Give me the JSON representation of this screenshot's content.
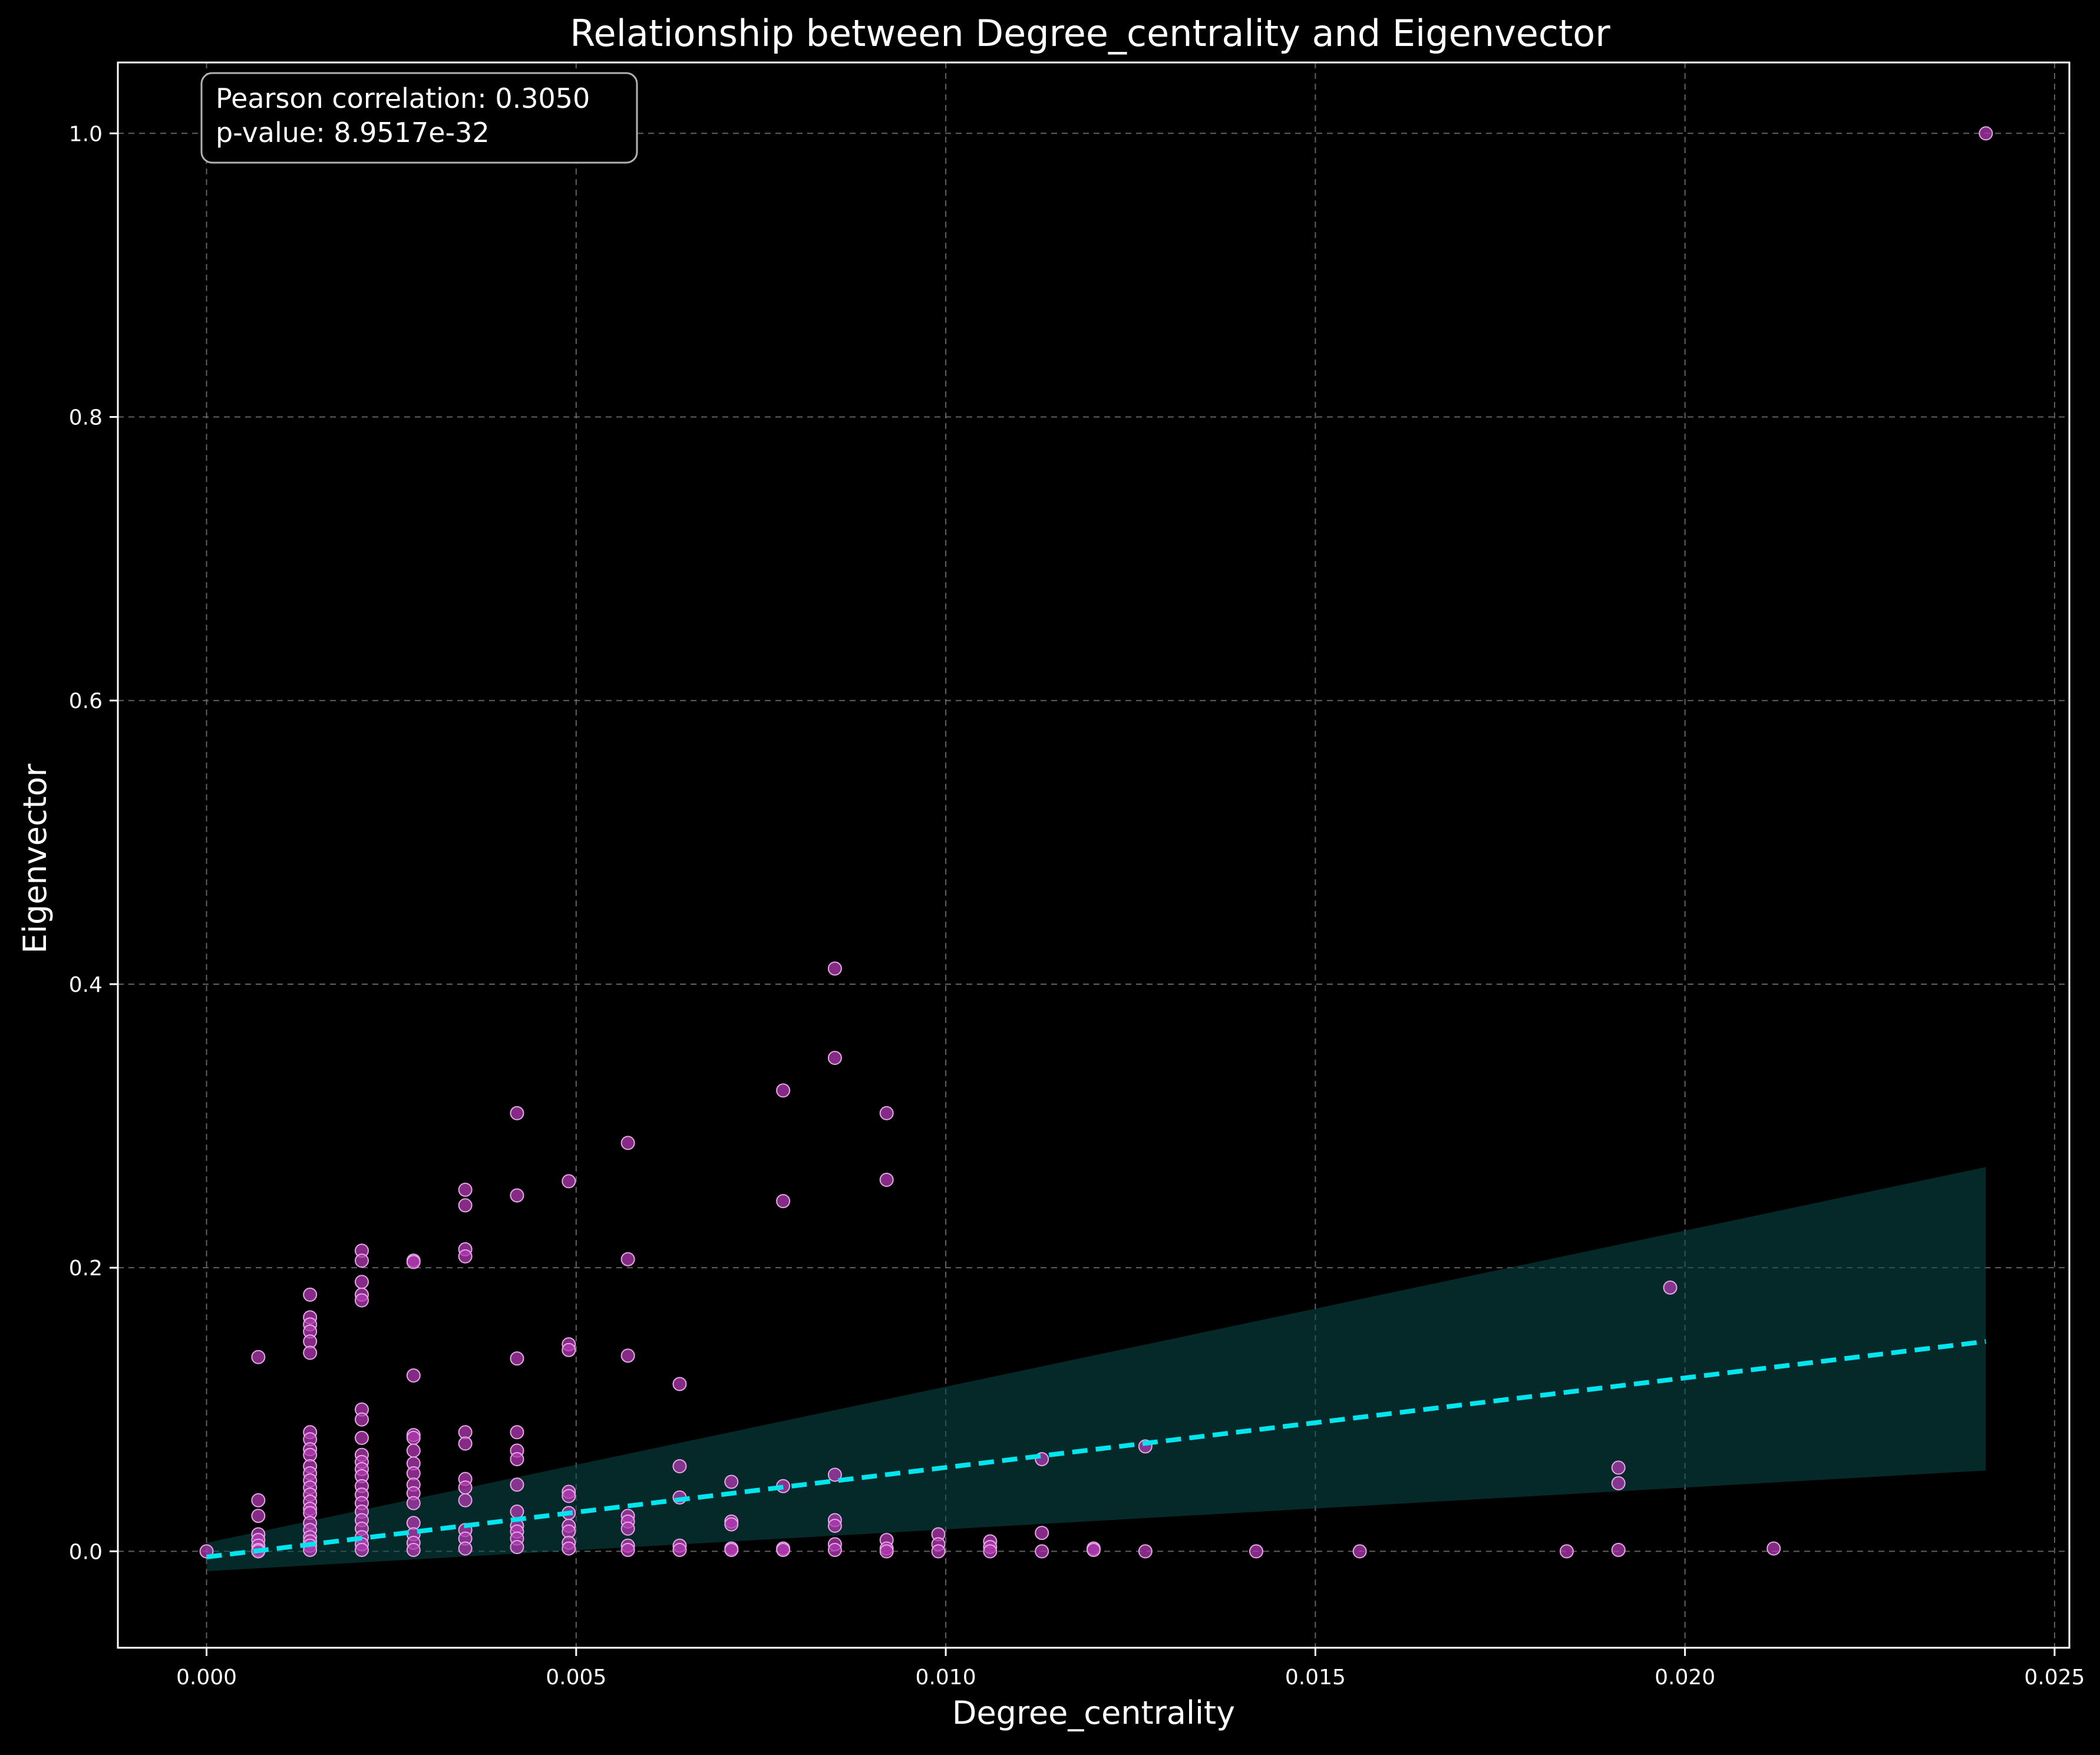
{
  "chart_data": {
    "type": "scatter",
    "title": "Relationship between Degree_centrality and Eigenvector",
    "xlabel": "Degree_centrality",
    "ylabel": "Eigenvector",
    "xlim": [
      -0.0012,
      0.0252
    ],
    "ylim": [
      -0.068,
      1.05
    ],
    "xticks": [
      0.0,
      0.005,
      0.01,
      0.015,
      0.02,
      0.025
    ],
    "xtick_labels": [
      "0.000",
      "0.005",
      "0.010",
      "0.015",
      "0.020",
      "0.025"
    ],
    "yticks": [
      0.0,
      0.2,
      0.4,
      0.6,
      0.8,
      1.0
    ],
    "ytick_labels": [
      "0.0",
      "0.2",
      "0.4",
      "0.6",
      "0.8",
      "1.0"
    ],
    "grid": true,
    "background": "#000000",
    "point_color": "#b23ab2",
    "point_edge_color": "#e5a8e5",
    "regression_color": "#00e5ee",
    "band_color": "#0a4a48",
    "annotation": {
      "lines": [
        "Pearson correlation: 0.3050",
        "p-value: 8.9517e-32"
      ],
      "position": "top-left"
    },
    "regression": {
      "x": [
        0.0,
        0.02407
      ],
      "y": [
        -0.004,
        0.148
      ],
      "band_lower": [
        -0.014,
        0.057
      ],
      "band_upper": [
        0.006,
        0.271
      ]
    },
    "points": [
      {
        "x": 0.0,
        "y": 0.0
      },
      {
        "x": 0.0007,
        "y": 0.137
      },
      {
        "x": 0.0007,
        "y": 0.036
      },
      {
        "x": 0.0007,
        "y": 0.025
      },
      {
        "x": 0.0007,
        "y": 0.012
      },
      {
        "x": 0.0007,
        "y": 0.008
      },
      {
        "x": 0.0007,
        "y": 0.004
      },
      {
        "x": 0.0007,
        "y": 0.001
      },
      {
        "x": 0.0007,
        "y": 0.0
      },
      {
        "x": 0.0014,
        "y": 0.181
      },
      {
        "x": 0.0014,
        "y": 0.165
      },
      {
        "x": 0.0014,
        "y": 0.16
      },
      {
        "x": 0.0014,
        "y": 0.155
      },
      {
        "x": 0.0014,
        "y": 0.148
      },
      {
        "x": 0.0014,
        "y": 0.14
      },
      {
        "x": 0.0014,
        "y": 0.084
      },
      {
        "x": 0.0014,
        "y": 0.079
      },
      {
        "x": 0.0014,
        "y": 0.072
      },
      {
        "x": 0.0014,
        "y": 0.068
      },
      {
        "x": 0.0014,
        "y": 0.06
      },
      {
        "x": 0.0014,
        "y": 0.055
      },
      {
        "x": 0.0014,
        "y": 0.05
      },
      {
        "x": 0.0014,
        "y": 0.045
      },
      {
        "x": 0.0014,
        "y": 0.04
      },
      {
        "x": 0.0014,
        "y": 0.035
      },
      {
        "x": 0.0014,
        "y": 0.03
      },
      {
        "x": 0.0014,
        "y": 0.027
      },
      {
        "x": 0.0014,
        "y": 0.02
      },
      {
        "x": 0.0014,
        "y": 0.015
      },
      {
        "x": 0.0014,
        "y": 0.01
      },
      {
        "x": 0.0014,
        "y": 0.007
      },
      {
        "x": 0.0014,
        "y": 0.004
      },
      {
        "x": 0.0014,
        "y": 0.001
      },
      {
        "x": 0.0021,
        "y": 0.212
      },
      {
        "x": 0.0021,
        "y": 0.205
      },
      {
        "x": 0.0021,
        "y": 0.19
      },
      {
        "x": 0.0021,
        "y": 0.181
      },
      {
        "x": 0.0021,
        "y": 0.177
      },
      {
        "x": 0.0021,
        "y": 0.1
      },
      {
        "x": 0.0021,
        "y": 0.093
      },
      {
        "x": 0.0021,
        "y": 0.08
      },
      {
        "x": 0.0021,
        "y": 0.068
      },
      {
        "x": 0.0021,
        "y": 0.063
      },
      {
        "x": 0.0021,
        "y": 0.058
      },
      {
        "x": 0.0021,
        "y": 0.053
      },
      {
        "x": 0.0021,
        "y": 0.046
      },
      {
        "x": 0.0021,
        "y": 0.04
      },
      {
        "x": 0.0021,
        "y": 0.034
      },
      {
        "x": 0.0021,
        "y": 0.028
      },
      {
        "x": 0.0021,
        "y": 0.022
      },
      {
        "x": 0.0021,
        "y": 0.016
      },
      {
        "x": 0.0021,
        "y": 0.01
      },
      {
        "x": 0.0021,
        "y": 0.005
      },
      {
        "x": 0.0021,
        "y": 0.001
      },
      {
        "x": 0.0028,
        "y": 0.205
      },
      {
        "x": 0.0028,
        "y": 0.204
      },
      {
        "x": 0.0028,
        "y": 0.124
      },
      {
        "x": 0.0028,
        "y": 0.082
      },
      {
        "x": 0.0028,
        "y": 0.08
      },
      {
        "x": 0.0028,
        "y": 0.071
      },
      {
        "x": 0.0028,
        "y": 0.062
      },
      {
        "x": 0.0028,
        "y": 0.055
      },
      {
        "x": 0.0028,
        "y": 0.047
      },
      {
        "x": 0.0028,
        "y": 0.041
      },
      {
        "x": 0.0028,
        "y": 0.034
      },
      {
        "x": 0.0028,
        "y": 0.02
      },
      {
        "x": 0.0028,
        "y": 0.012
      },
      {
        "x": 0.0028,
        "y": 0.006
      },
      {
        "x": 0.0028,
        "y": 0.001
      },
      {
        "x": 0.0035,
        "y": 0.255
      },
      {
        "x": 0.0035,
        "y": 0.244
      },
      {
        "x": 0.0035,
        "y": 0.213
      },
      {
        "x": 0.0035,
        "y": 0.208
      },
      {
        "x": 0.0035,
        "y": 0.084
      },
      {
        "x": 0.0035,
        "y": 0.076
      },
      {
        "x": 0.0035,
        "y": 0.051
      },
      {
        "x": 0.0035,
        "y": 0.045
      },
      {
        "x": 0.0035,
        "y": 0.036
      },
      {
        "x": 0.0035,
        "y": 0.015
      },
      {
        "x": 0.0035,
        "y": 0.009
      },
      {
        "x": 0.0035,
        "y": 0.002
      },
      {
        "x": 0.0042,
        "y": 0.309
      },
      {
        "x": 0.0042,
        "y": 0.251
      },
      {
        "x": 0.0042,
        "y": 0.136
      },
      {
        "x": 0.0042,
        "y": 0.084
      },
      {
        "x": 0.0042,
        "y": 0.071
      },
      {
        "x": 0.0042,
        "y": 0.065
      },
      {
        "x": 0.0042,
        "y": 0.047
      },
      {
        "x": 0.0042,
        "y": 0.028
      },
      {
        "x": 0.0042,
        "y": 0.018
      },
      {
        "x": 0.0042,
        "y": 0.014
      },
      {
        "x": 0.0042,
        "y": 0.009
      },
      {
        "x": 0.0042,
        "y": 0.003
      },
      {
        "x": 0.0049,
        "y": 0.261
      },
      {
        "x": 0.0049,
        "y": 0.146
      },
      {
        "x": 0.0049,
        "y": 0.142
      },
      {
        "x": 0.0049,
        "y": 0.042
      },
      {
        "x": 0.0049,
        "y": 0.039
      },
      {
        "x": 0.0049,
        "y": 0.027
      },
      {
        "x": 0.0049,
        "y": 0.018
      },
      {
        "x": 0.0049,
        "y": 0.014
      },
      {
        "x": 0.0049,
        "y": 0.006
      },
      {
        "x": 0.0049,
        "y": 0.002
      },
      {
        "x": 0.0057,
        "y": 0.288
      },
      {
        "x": 0.0057,
        "y": 0.206
      },
      {
        "x": 0.0057,
        "y": 0.138
      },
      {
        "x": 0.0057,
        "y": 0.025
      },
      {
        "x": 0.0057,
        "y": 0.021
      },
      {
        "x": 0.0057,
        "y": 0.016
      },
      {
        "x": 0.0057,
        "y": 0.004
      },
      {
        "x": 0.0057,
        "y": 0.001
      },
      {
        "x": 0.0064,
        "y": 0.118
      },
      {
        "x": 0.0064,
        "y": 0.06
      },
      {
        "x": 0.0064,
        "y": 0.038
      },
      {
        "x": 0.0064,
        "y": 0.004
      },
      {
        "x": 0.0064,
        "y": 0.001
      },
      {
        "x": 0.0071,
        "y": 0.049
      },
      {
        "x": 0.0071,
        "y": 0.021
      },
      {
        "x": 0.0071,
        "y": 0.019
      },
      {
        "x": 0.0071,
        "y": 0.002
      },
      {
        "x": 0.0071,
        "y": 0.001
      },
      {
        "x": 0.0078,
        "y": 0.325
      },
      {
        "x": 0.0078,
        "y": 0.247
      },
      {
        "x": 0.0078,
        "y": 0.046
      },
      {
        "x": 0.0078,
        "y": 0.002
      },
      {
        "x": 0.0078,
        "y": 0.001
      },
      {
        "x": 0.0085,
        "y": 0.411
      },
      {
        "x": 0.0085,
        "y": 0.348
      },
      {
        "x": 0.0085,
        "y": 0.054
      },
      {
        "x": 0.0085,
        "y": 0.022
      },
      {
        "x": 0.0085,
        "y": 0.018
      },
      {
        "x": 0.0085,
        "y": 0.005
      },
      {
        "x": 0.0085,
        "y": 0.001
      },
      {
        "x": 0.0092,
        "y": 0.309
      },
      {
        "x": 0.0092,
        "y": 0.262
      },
      {
        "x": 0.0092,
        "y": 0.008
      },
      {
        "x": 0.0092,
        "y": 0.002
      },
      {
        "x": 0.0092,
        "y": 0.0
      },
      {
        "x": 0.0099,
        "y": 0.012
      },
      {
        "x": 0.0099,
        "y": 0.005
      },
      {
        "x": 0.0099,
        "y": 0.0
      },
      {
        "x": 0.0106,
        "y": 0.007
      },
      {
        "x": 0.0106,
        "y": 0.003
      },
      {
        "x": 0.0106,
        "y": 0.0
      },
      {
        "x": 0.0113,
        "y": 0.065
      },
      {
        "x": 0.0113,
        "y": 0.013
      },
      {
        "x": 0.0113,
        "y": 0.0
      },
      {
        "x": 0.012,
        "y": 0.002
      },
      {
        "x": 0.012,
        "y": 0.001
      },
      {
        "x": 0.0127,
        "y": 0.074
      },
      {
        "x": 0.0127,
        "y": 0.0
      },
      {
        "x": 0.0142,
        "y": 0.0
      },
      {
        "x": 0.0156,
        "y": 0.0
      },
      {
        "x": 0.0184,
        "y": 0.0
      },
      {
        "x": 0.0191,
        "y": 0.059
      },
      {
        "x": 0.0191,
        "y": 0.048
      },
      {
        "x": 0.0191,
        "y": 0.001
      },
      {
        "x": 0.0198,
        "y": 0.186
      },
      {
        "x": 0.0212,
        "y": 0.002
      },
      {
        "x": 0.02407,
        "y": 1.0
      }
    ]
  }
}
